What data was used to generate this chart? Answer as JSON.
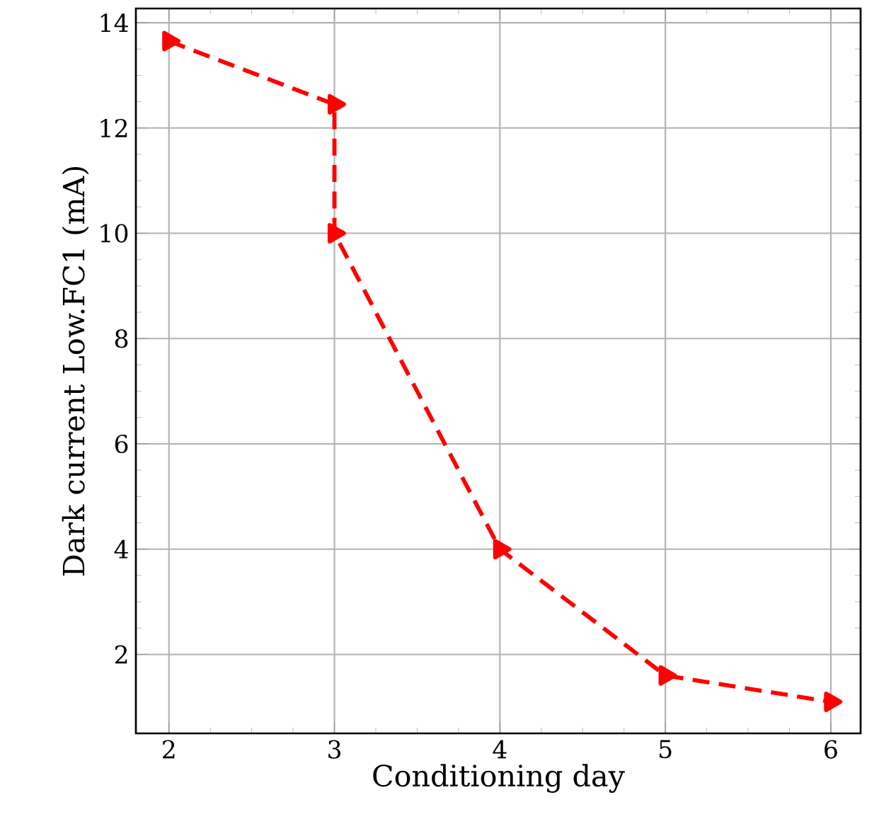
{
  "chart_data": {
    "type": "line",
    "xlabel": "Conditioning day",
    "ylabel": "Dark current Low.FC1 (mA)",
    "x": [
      2,
      3,
      3,
      4,
      5,
      6
    ],
    "series": [
      {
        "color": "#ff0000",
        "values": [
          13.65,
          12.45,
          10.0,
          4.0,
          1.6,
          1.1
        ]
      }
    ],
    "xlim": [
      1.8,
      6.18
    ],
    "ylim": [
      0.5,
      14.27
    ],
    "xticks": [
      2,
      3,
      4,
      5,
      6
    ],
    "yticks": [
      2,
      4,
      6,
      8,
      10,
      12,
      14
    ],
    "grid": true,
    "marker": "triangle",
    "line_style": "dashed"
  }
}
